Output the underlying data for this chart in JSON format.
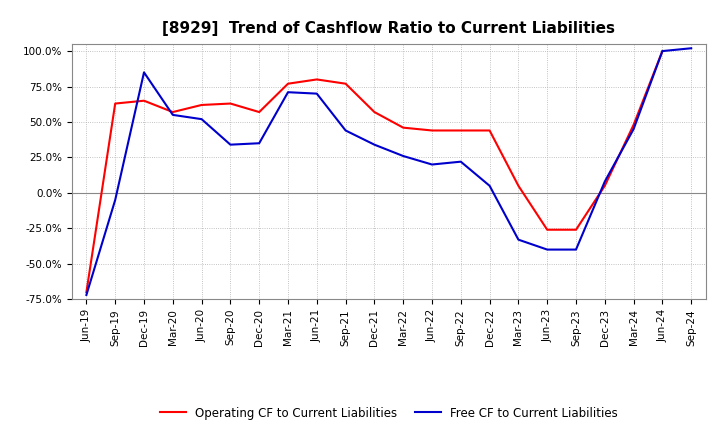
{
  "title": "[8929]  Trend of Cashflow Ratio to Current Liabilities",
  "x_labels": [
    "Jun-19",
    "Sep-19",
    "Dec-19",
    "Mar-20",
    "Jun-20",
    "Sep-20",
    "Dec-20",
    "Mar-21",
    "Jun-21",
    "Sep-21",
    "Dec-21",
    "Mar-22",
    "Jun-22",
    "Sep-22",
    "Dec-22",
    "Mar-23",
    "Jun-23",
    "Sep-23",
    "Dec-23",
    "Mar-24",
    "Jun-24",
    "Sep-24"
  ],
  "operating_cf": [
    -70,
    63,
    65,
    57,
    62,
    63,
    57,
    77,
    80,
    77,
    57,
    46,
    44,
    44,
    44,
    5,
    -26,
    -26,
    5,
    48,
    100,
    null
  ],
  "free_cf": [
    -72,
    -5,
    85,
    55,
    52,
    34,
    35,
    71,
    70,
    44,
    34,
    26,
    20,
    22,
    5,
    -33,
    -40,
    -40,
    8,
    45,
    100,
    102
  ],
  "ylim": [
    -75,
    105
  ],
  "yticks": [
    -75,
    -50,
    -25,
    0,
    25,
    50,
    75,
    100
  ],
  "ytick_labels": [
    "-75.0%",
    "-50.0%",
    "-25.0%",
    "0.0%",
    "25.0%",
    "50.0%",
    "75.0%",
    "100.0%"
  ],
  "operating_color": "#ff0000",
  "free_color": "#0000cd",
  "bg_color": "#ffffff",
  "plot_bg_color": "#ffffff",
  "grid_color": "#b0b0b0",
  "legend_operating": "Operating CF to Current Liabilities",
  "legend_free": "Free CF to Current Liabilities",
  "title_fontsize": 11,
  "axis_fontsize": 7.5,
  "legend_fontsize": 8.5,
  "line_width": 1.5
}
